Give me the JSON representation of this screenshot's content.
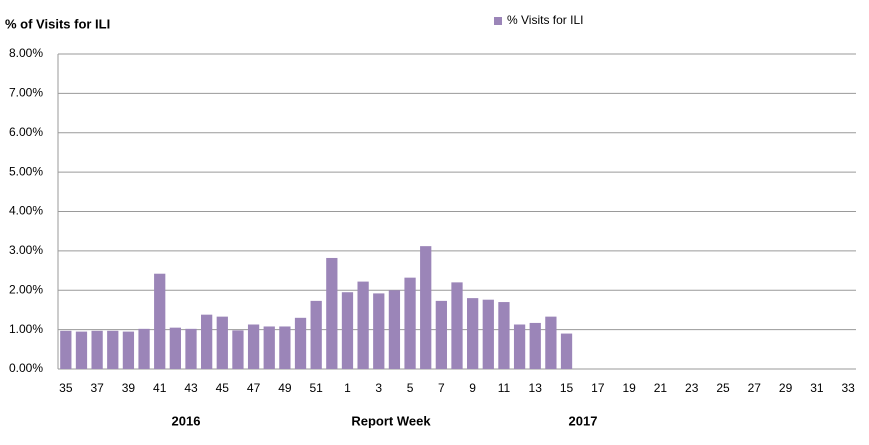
{
  "chart_data": {
    "type": "bar",
    "title": "% of Visits for ILI",
    "x_label": "Report Week",
    "annotations": [
      "2016",
      "2017"
    ],
    "categories": [
      "35",
      null,
      "37",
      null,
      "39",
      null,
      "41",
      null,
      "43",
      null,
      "45",
      null,
      "47",
      null,
      "49",
      null,
      "51",
      null,
      "1",
      null,
      "3",
      null,
      "5",
      null,
      "7",
      null,
      "9",
      null,
      "11",
      null,
      "13",
      null,
      "15",
      null,
      "17",
      null,
      "19",
      null,
      "21",
      null,
      "23",
      null,
      "25",
      null,
      "27",
      null,
      "29",
      null,
      "31",
      null,
      "33"
    ],
    "series": [
      {
        "name": "% Visits for ILI",
        "color": "#9b85b8",
        "values": [
          0.97,
          0.95,
          0.97,
          0.97,
          0.95,
          1.02,
          2.42,
          1.05,
          1.02,
          1.38,
          1.33,
          0.98,
          1.13,
          1.08,
          1.08,
          1.3,
          1.73,
          2.82,
          1.95,
          2.22,
          1.92,
          2.0,
          2.32,
          3.12,
          1.73,
          2.2,
          1.8,
          1.76,
          1.7,
          1.13,
          1.17,
          1.33,
          0.9,
          null,
          null,
          null,
          null,
          null,
          null,
          null,
          null,
          null,
          null,
          null,
          null,
          null,
          null,
          null,
          null,
          null,
          null
        ]
      }
    ],
    "ylim": [
      0,
      8
    ],
    "yticks": [
      {
        "value": 0,
        "label": "0.00%"
      },
      {
        "value": 1,
        "label": "1.00%"
      },
      {
        "value": 2,
        "label": "2.00%"
      },
      {
        "value": 3,
        "label": "3.00%"
      },
      {
        "value": 4,
        "label": "4.00%"
      },
      {
        "value": 5,
        "label": "5.00%"
      },
      {
        "value": 6,
        "label": "6.00%"
      },
      {
        "value": 7,
        "label": "7.00%"
      },
      {
        "value": 8,
        "label": "8.00%"
      }
    ],
    "grid": true,
    "legend": "top-right"
  }
}
